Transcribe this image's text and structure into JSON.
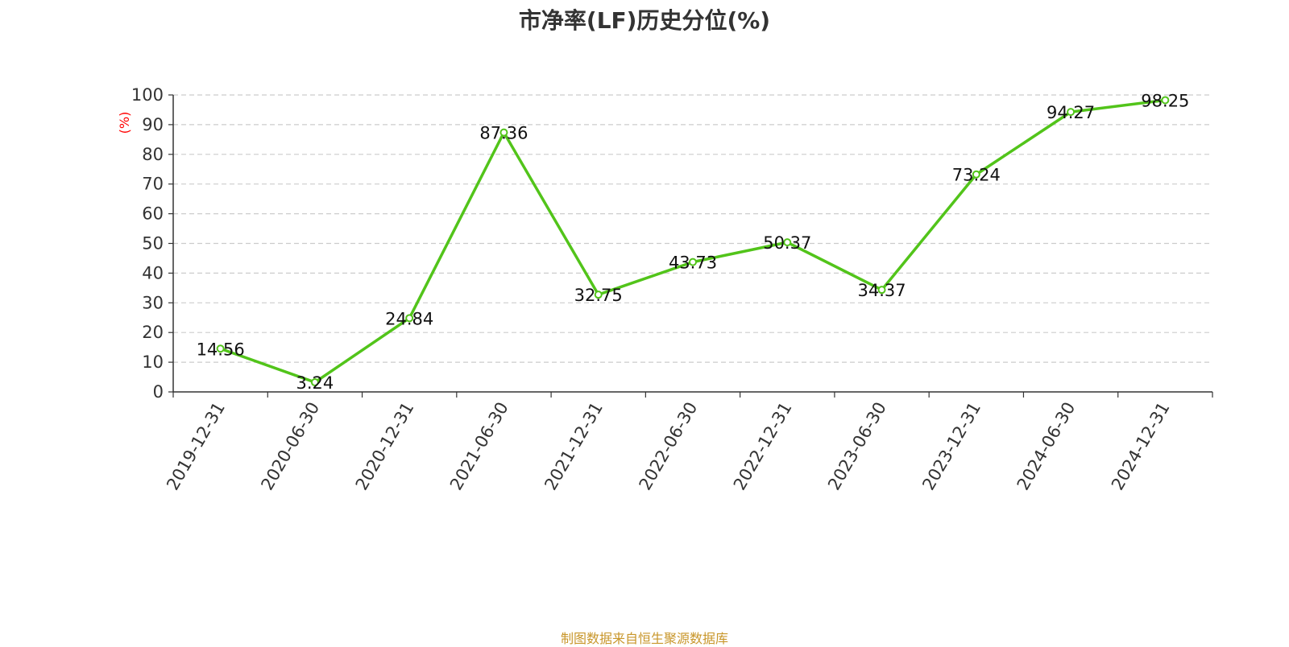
{
  "chart_data": {
    "type": "line",
    "title": "市净率(LF)历史分位(%)",
    "ylabel": "(%)",
    "xlabel": "",
    "categories": [
      "2019-12-31",
      "2020-06-30",
      "2020-12-31",
      "2021-06-30",
      "2021-12-31",
      "2022-06-30",
      "2022-12-31",
      "2023-06-30",
      "2023-12-31",
      "2024-06-30",
      "2024-12-31"
    ],
    "series": [
      {
        "values": [
          14.56,
          3.24,
          24.84,
          87.36,
          32.75,
          43.73,
          50.37,
          34.37,
          73.24,
          94.27,
          98.25
        ]
      }
    ],
    "ylim": [
      0,
      100
    ],
    "yticks": [
      0,
      10,
      20,
      30,
      40,
      50,
      60,
      70,
      80,
      90,
      100
    ],
    "grid": true,
    "line_color": "#52c41a",
    "ylabel_color": "#ff0000"
  },
  "footer": {
    "source": "制图数据来自恒生聚源数据库"
  }
}
